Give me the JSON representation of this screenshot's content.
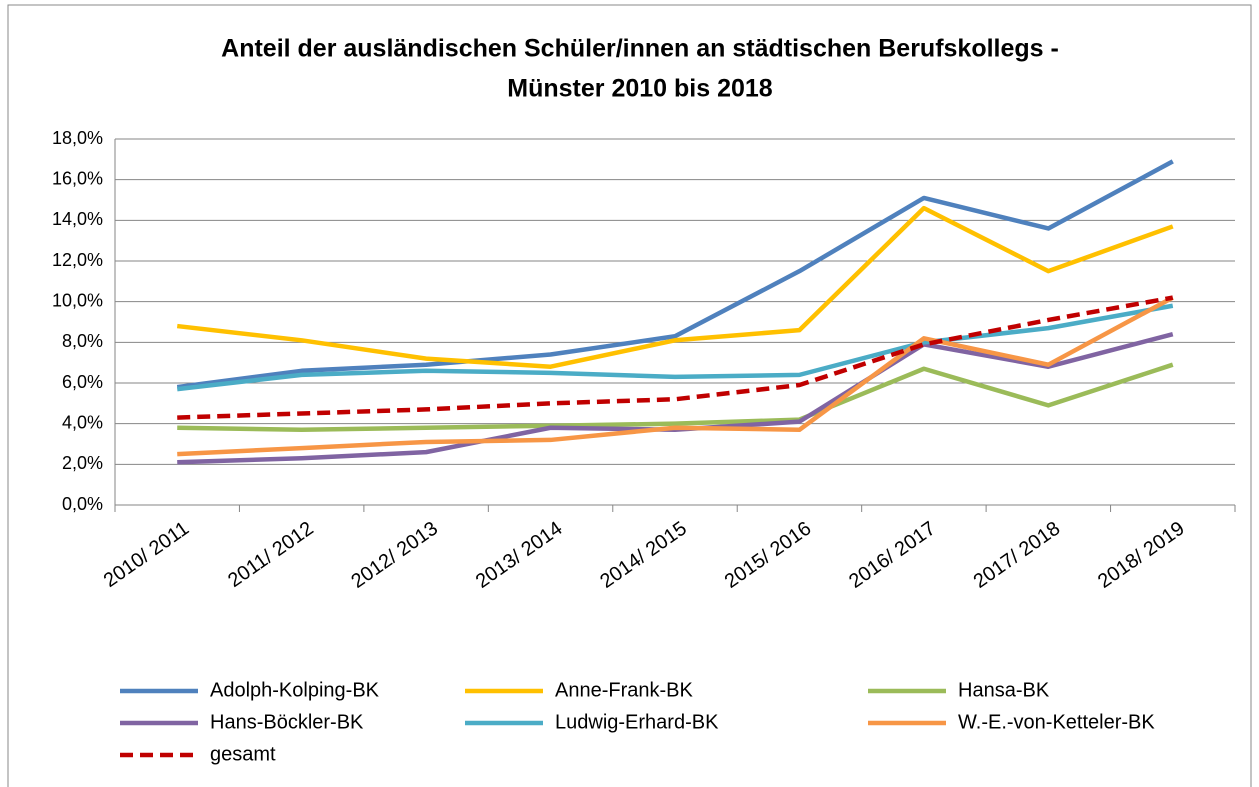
{
  "chart_data": {
    "type": "line",
    "title": [
      "Anteil der ausländischen Schüler/innen an städtischen Berufskollegs -",
      "Münster 2010 bis 2018"
    ],
    "categories": [
      "2010/ 2011",
      "2011/ 2012",
      "2012/ 2013",
      "2013/ 2014",
      "2014/ 2015",
      "2015/ 2016",
      "2016/ 2017",
      "2017/ 2018",
      "2018/ 2019"
    ],
    "series": [
      {
        "name": "Adolph-Kolping-BK",
        "color": "#4f81bd",
        "values": [
          5.8,
          6.6,
          6.9,
          7.4,
          8.3,
          11.5,
          15.1,
          13.6,
          16.9
        ]
      },
      {
        "name": "Anne-Frank-BK",
        "color": "#ffc000",
        "values": [
          8.8,
          8.1,
          7.2,
          6.8,
          8.1,
          8.6,
          14.6,
          11.5,
          13.7
        ]
      },
      {
        "name": "Hansa-BK",
        "color": "#9bbb59",
        "values": [
          3.8,
          3.7,
          3.8,
          3.9,
          4.0,
          4.2,
          6.7,
          4.9,
          6.9
        ]
      },
      {
        "name": "Hans-Böckler-BK",
        "color": "#8064a2",
        "values": [
          2.1,
          2.3,
          2.6,
          3.8,
          3.7,
          4.1,
          7.9,
          6.8,
          8.4
        ]
      },
      {
        "name": "Ludwig-Erhard-BK",
        "color": "#4bacc6",
        "values": [
          5.7,
          6.4,
          6.6,
          6.5,
          6.3,
          6.4,
          8.0,
          8.7,
          9.8
        ]
      },
      {
        "name": "W.-E.-von-Ketteler-BK",
        "color": "#f79646",
        "values": [
          2.5,
          2.8,
          3.1,
          3.2,
          3.8,
          3.7,
          8.2,
          6.9,
          10.2
        ]
      },
      {
        "name": "gesamt",
        "color": "#c00000",
        "dashed": true,
        "values": [
          4.3,
          4.5,
          4.7,
          5.0,
          5.2,
          5.9,
          7.9,
          9.1,
          10.2
        ]
      }
    ],
    "ylim": [
      0,
      18
    ],
    "yticks": [
      {
        "value": 0,
        "label": "0,0%"
      },
      {
        "value": 2,
        "label": "2,0%"
      },
      {
        "value": 4,
        "label": "4,0%"
      },
      {
        "value": 6,
        "label": "6,0%"
      },
      {
        "value": 8,
        "label": "8,0%"
      },
      {
        "value": 10,
        "label": "10,0%"
      },
      {
        "value": 12,
        "label": "12,0%"
      },
      {
        "value": 14,
        "label": "14,0%"
      },
      {
        "value": 16,
        "label": "16,0%"
      },
      {
        "value": 18,
        "label": "18,0%"
      }
    ],
    "grid": true,
    "legend": "bottom"
  }
}
